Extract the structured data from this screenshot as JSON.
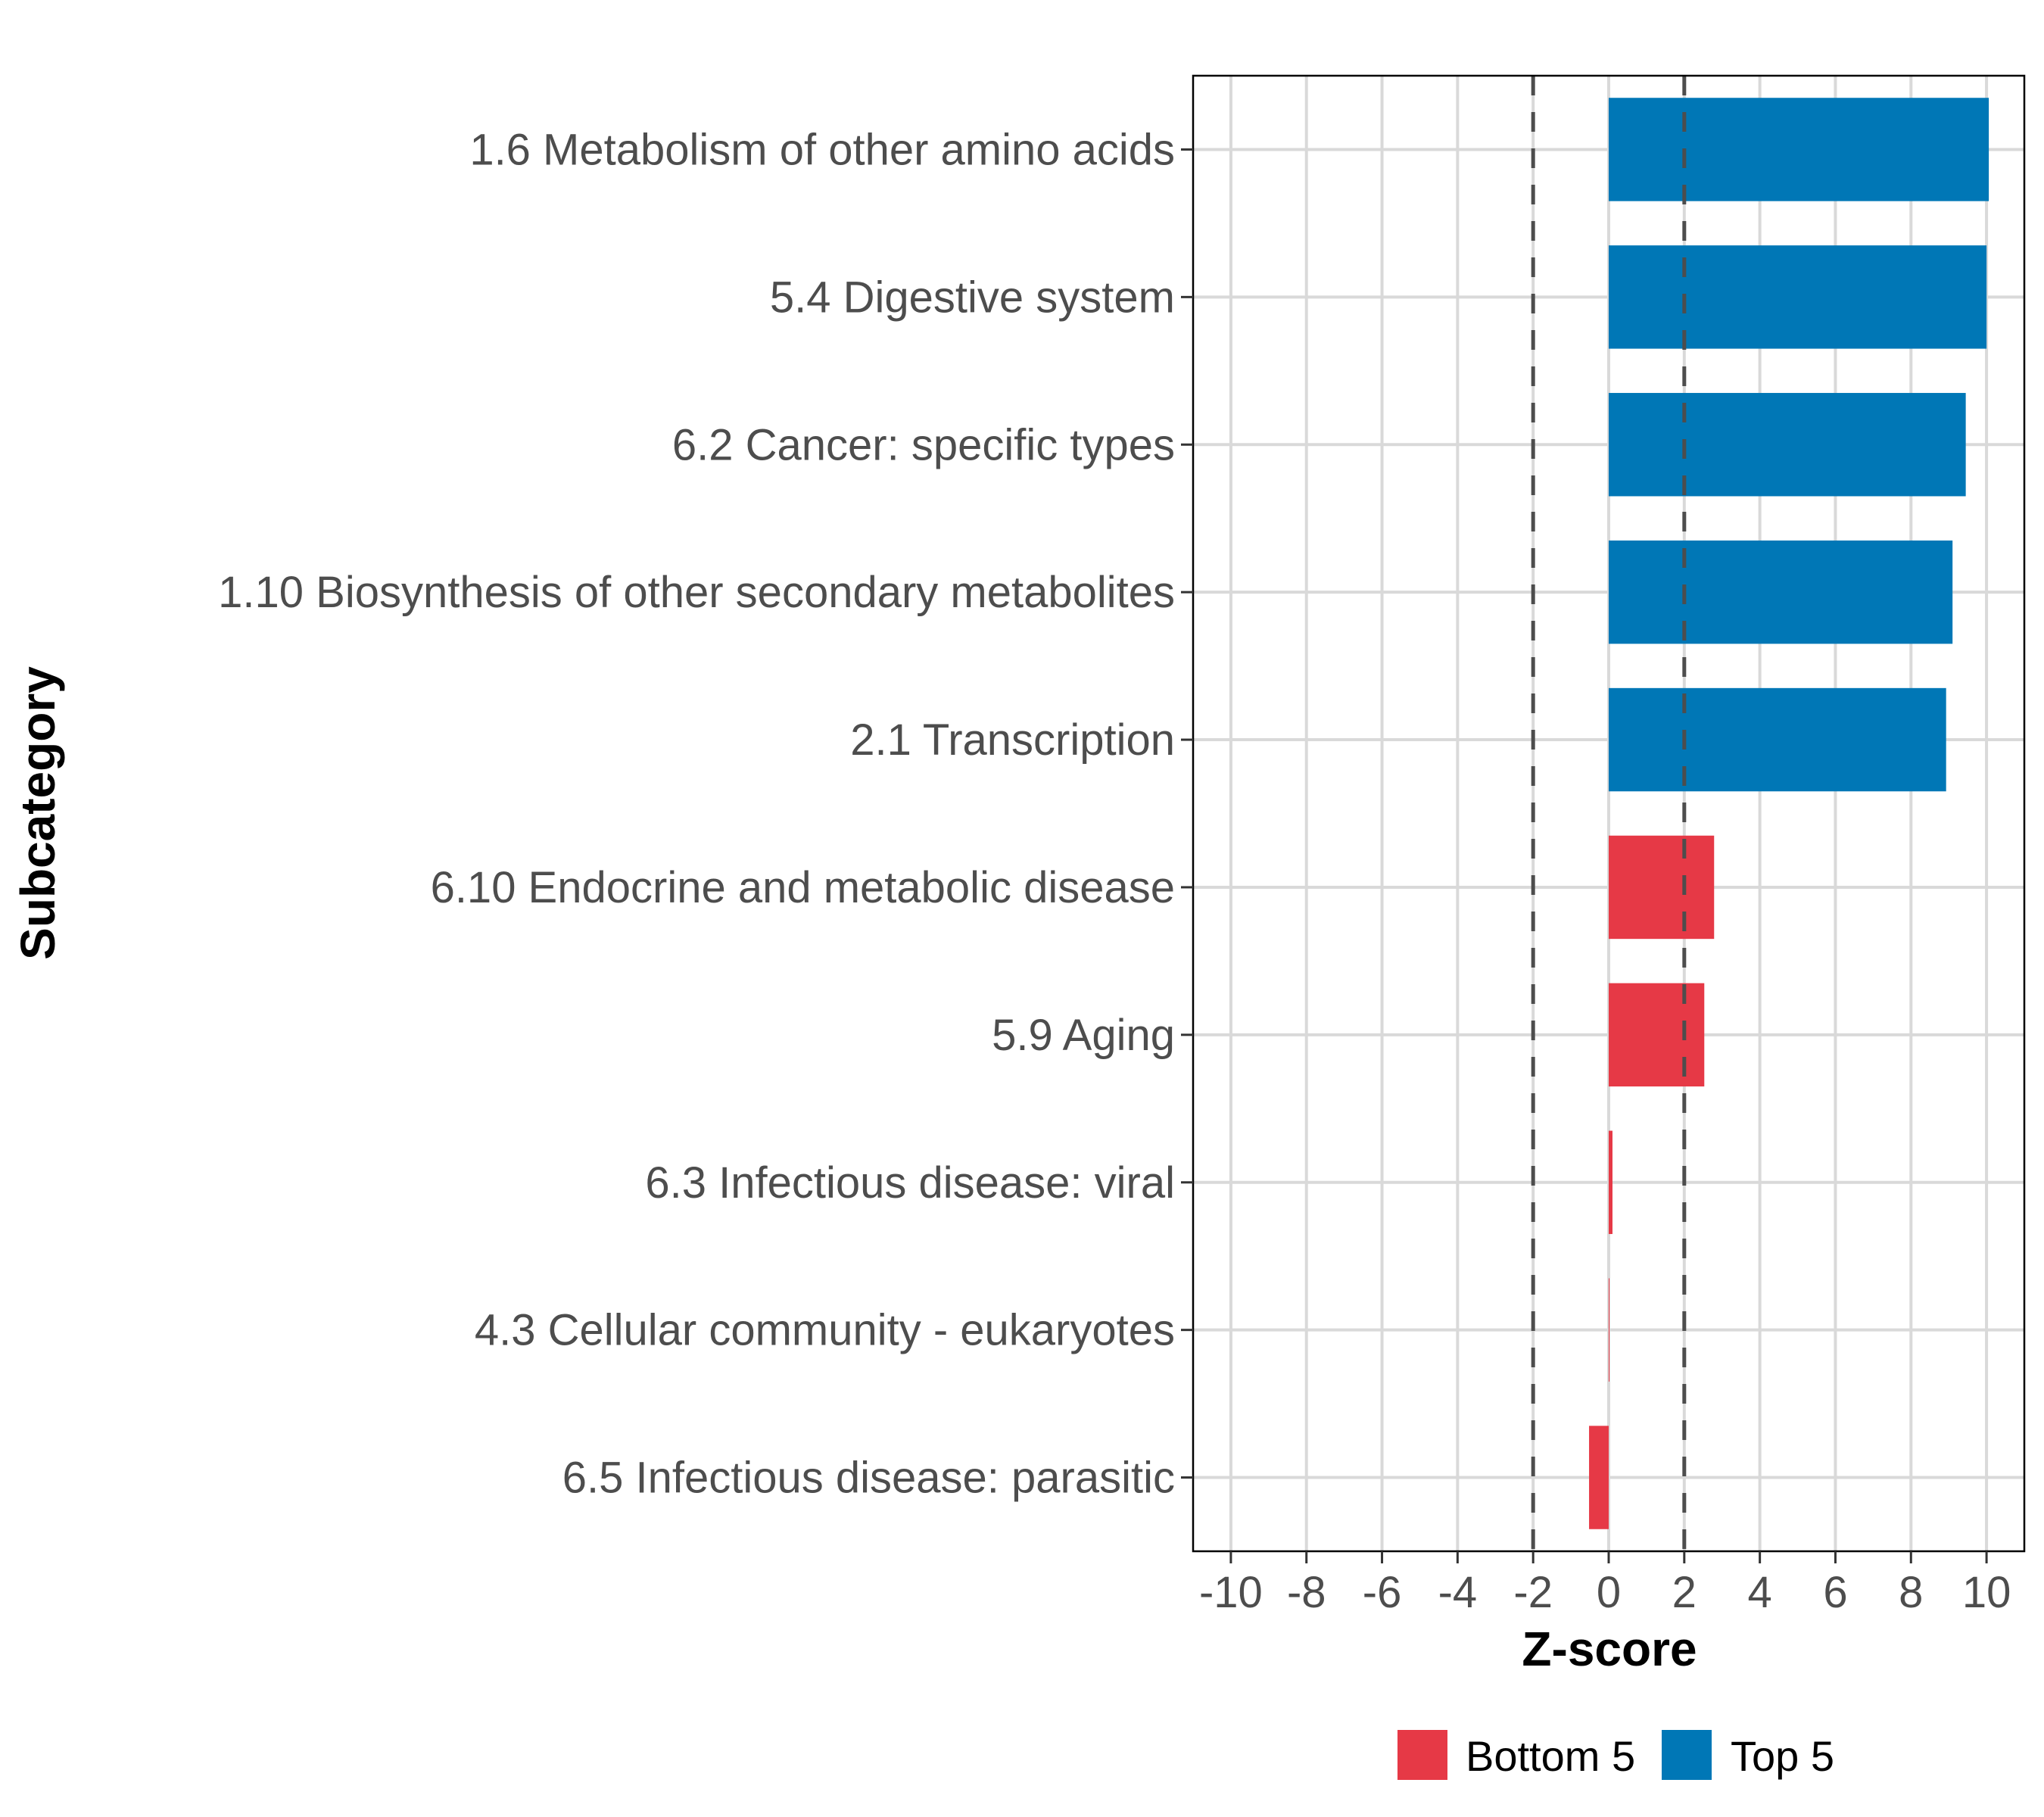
{
  "chart_data": {
    "type": "bar",
    "orientation": "horizontal",
    "xlabel": "Z-score",
    "ylabel": "Subcategory",
    "xlim": [
      -11,
      11
    ],
    "xticks": [
      -10,
      -8,
      -6,
      -4,
      -2,
      0,
      2,
      4,
      6,
      8,
      10
    ],
    "reference_lines": [
      -2,
      2
    ],
    "grid": true,
    "legend_position": "bottom",
    "legend": [
      {
        "name": "Bottom 5",
        "color": "#E63946"
      },
      {
        "name": "Top 5",
        "color": "#0077B6"
      }
    ],
    "categories": [
      "1.6 Metabolism of other amino acids",
      "5.4 Digestive system",
      "6.2 Cancer: specific types",
      "1.10 Biosynthesis of other secondary metabolites",
      "2.1 Transcription",
      "6.10 Endocrine and metabolic disease",
      "5.9 Aging",
      "6.3 Infectious disease: viral",
      "4.3 Cellular community - eukaryotes",
      "6.5 Infectious disease: parasitic"
    ],
    "values": [
      10.06,
      10.0,
      9.45,
      9.1,
      8.93,
      2.79,
      2.53,
      0.1,
      0.01,
      -0.52
    ],
    "groups": [
      "Top 5",
      "Top 5",
      "Top 5",
      "Top 5",
      "Top 5",
      "Bottom 5",
      "Bottom 5",
      "Bottom 5",
      "Bottom 5",
      "Bottom 5"
    ]
  }
}
